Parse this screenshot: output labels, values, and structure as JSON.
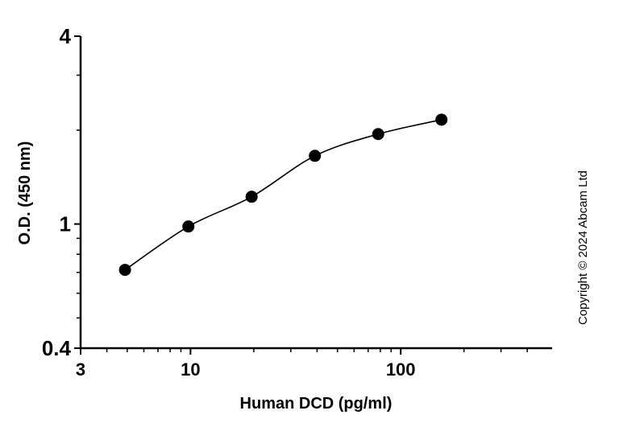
{
  "chart_data": {
    "type": "scatter",
    "title": "",
    "xlabel": "Human DCD (pg/ml)",
    "ylabel": "O.D. (450 nm)",
    "x_scale": "log",
    "y_scale": "log",
    "xlim": [
      3,
      525
    ],
    "ylim": [
      0.4,
      4
    ],
    "x_ticks": [
      {
        "value": 3,
        "label": "3"
      },
      {
        "value": 10,
        "label": "10"
      },
      {
        "value": 100,
        "label": "100"
      }
    ],
    "y_ticks": [
      {
        "value": 0.4,
        "label": "0.4"
      },
      {
        "value": 1,
        "label": "1"
      },
      {
        "value": 4,
        "label": "4"
      }
    ],
    "x_minor_ticks": [
      4,
      5,
      6,
      7,
      8,
      9,
      20,
      30,
      40,
      50,
      60,
      70,
      80,
      90,
      200,
      300,
      400
    ],
    "y_minor_ticks": [
      0.5,
      0.6,
      0.7,
      0.8,
      0.9,
      2,
      3
    ],
    "grid": false,
    "fit_curve": true,
    "marker_color": "#000000",
    "points": [
      {
        "x": 4.88,
        "y": 0.713
      },
      {
        "x": 9.77,
        "y": 0.982
      },
      {
        "x": 19.53,
        "y": 1.223
      },
      {
        "x": 39.06,
        "y": 1.654
      },
      {
        "x": 78.13,
        "y": 1.942
      },
      {
        "x": 156.25,
        "y": 2.16
      }
    ]
  },
  "copyright": "Copyright © 2024 Abcam Ltd"
}
